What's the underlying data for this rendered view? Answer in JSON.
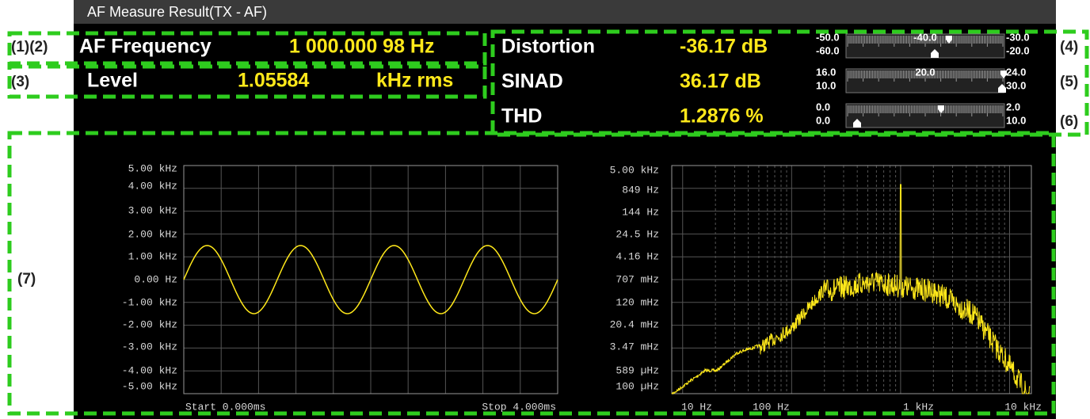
{
  "header": {
    "title": "AF Measure Result(TX - AF)"
  },
  "callouts": [
    "(1)(2)",
    "(3)",
    "(4)",
    "(5)",
    "(6)",
    "(7)"
  ],
  "left_panel": {
    "frequency": {
      "label": "AF Frequency",
      "value": "1 000.000 98 Hz"
    },
    "level": {
      "label": "Level",
      "value": "1.05584",
      "unit": "kHz rms"
    }
  },
  "right_panel": [
    {
      "label": "Distortion",
      "value": "-36.17 dB",
      "scale": {
        "top_left": "-50.0",
        "bottom_left": "-60.0",
        "center": "-40.0",
        "top_right": "-30.0",
        "bottom_right": "-20.0"
      }
    },
    {
      "label": "SINAD",
      "value": "36.17 dB",
      "scale": {
        "top_left": "16.0",
        "bottom_left": "10.0",
        "center": "20.0",
        "top_right": "24.0",
        "bottom_right": "30.0"
      }
    },
    {
      "label": "THD",
      "value": "1.2876 %",
      "scale": {
        "top_left": "0.0",
        "bottom_left": "0.0",
        "top_right": "2.0",
        "bottom_right": "10.0"
      }
    }
  ],
  "waveform": {
    "y_labels": [
      "5.00 kHz",
      "4.00 kHz",
      "3.00 kHz",
      "2.00 kHz",
      "1.00 kHz",
      "0.00  Hz",
      "-1.00 kHz",
      "-2.00 kHz",
      "-3.00 kHz",
      "-4.00 kHz",
      "-5.00 kHz"
    ],
    "start": "Start 0.000ms",
    "stop": "Stop 4.000ms"
  },
  "spectrum": {
    "y_labels": [
      "5.00 kHz",
      "849  Hz",
      "144  Hz",
      "24.5  Hz",
      "4.16  Hz",
      "707 mHz",
      "120 mHz",
      "20.4 mHz",
      "3.47 mHz",
      "589 µHz",
      "100 µHz"
    ],
    "x_labels": [
      "10  Hz",
      "100  Hz",
      "1  kHz",
      "10  kHz"
    ]
  }
}
